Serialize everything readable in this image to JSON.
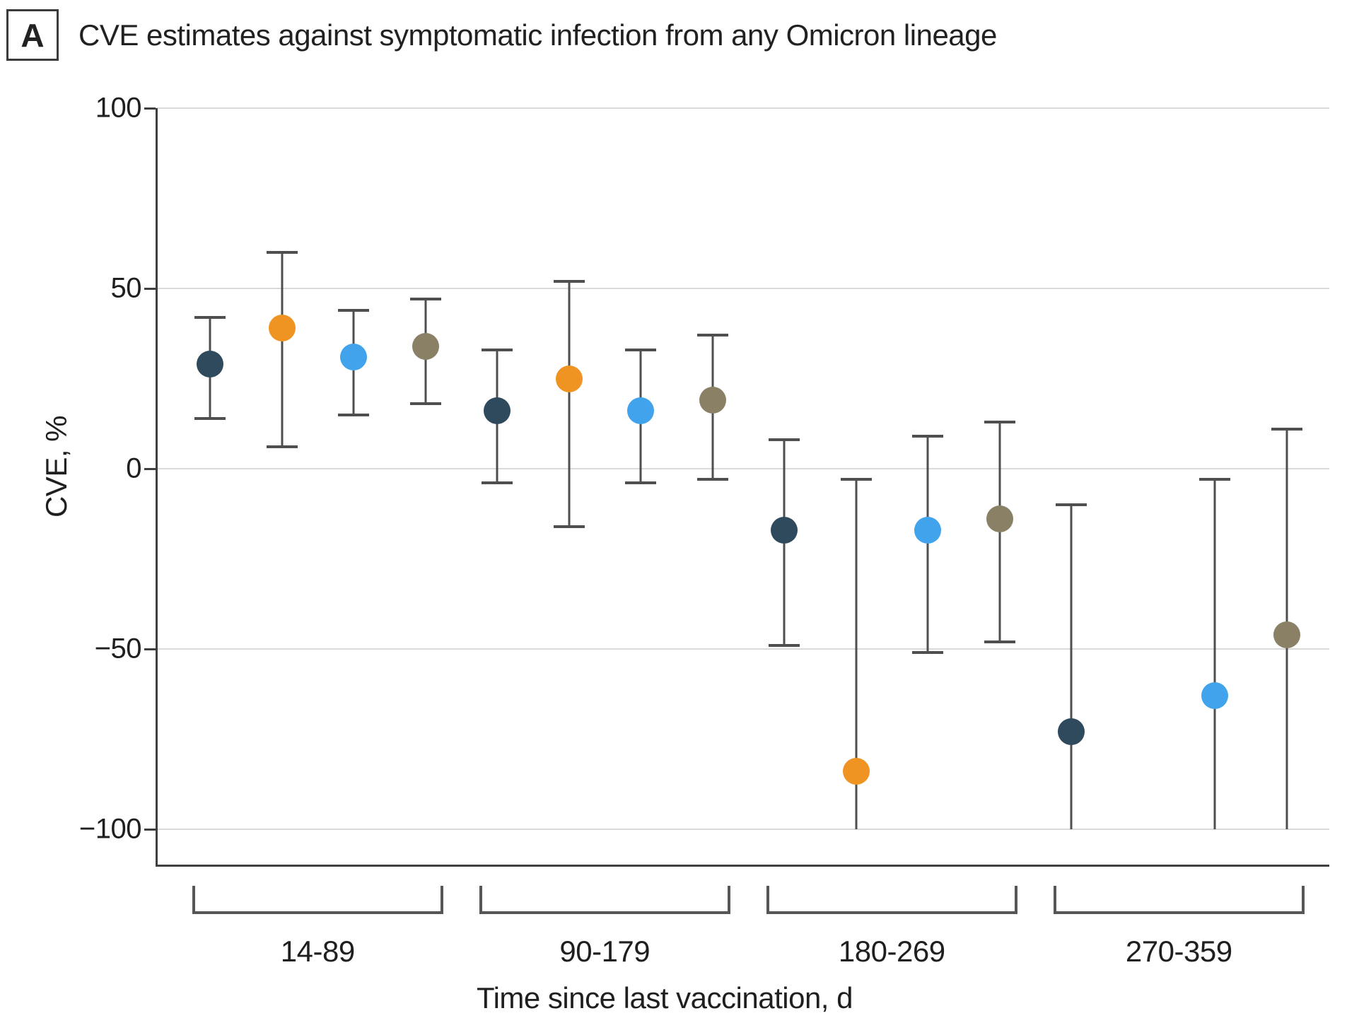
{
  "panel_label": "A",
  "title": "CVE estimates against symptomatic infection from any Omicron lineage",
  "chart_data": {
    "type": "scatter",
    "subtype": "point-estimates-with-95ci-error-bars",
    "title": "CVE estimates against symptomatic infection from any Omicron lineage",
    "xlabel": "Time since last vaccination, d",
    "ylabel": "CVE, %",
    "ylim": [
      -100,
      100
    ],
    "yticks": [
      100,
      50,
      0,
      -50,
      -100
    ],
    "ytick_labels": [
      "100",
      "50",
      "0",
      "−50",
      "−100"
    ],
    "grid": true,
    "legend_position": "none",
    "categories": [
      "14-89",
      "90-179",
      "180-269",
      "270-359"
    ],
    "note_truncation": "error bars reaching -100 are truncated at axis minimum without a bottom cap",
    "series": [
      {
        "name": "navy",
        "color": "#2e4a5c",
        "slot": 0,
        "points": [
          {
            "group": "14-89",
            "value": 29,
            "ci_low": 14,
            "ci_high": 42,
            "low_truncated": false
          },
          {
            "group": "90-179",
            "value": 16,
            "ci_low": -4,
            "ci_high": 33,
            "low_truncated": false
          },
          {
            "group": "180-269",
            "value": -17,
            "ci_low": -49,
            "ci_high": 8,
            "low_truncated": false
          },
          {
            "group": "270-359",
            "value": -73,
            "ci_low": -100,
            "ci_high": -10,
            "low_truncated": true
          }
        ]
      },
      {
        "name": "orange",
        "color": "#ef9322",
        "slot": 1,
        "points": [
          {
            "group": "14-89",
            "value": 39,
            "ci_low": 6,
            "ci_high": 60,
            "low_truncated": false
          },
          {
            "group": "90-179",
            "value": 25,
            "ci_low": -16,
            "ci_high": 52,
            "low_truncated": false
          },
          {
            "group": "180-269",
            "value": -84,
            "ci_low": -100,
            "ci_high": -3,
            "low_truncated": true
          }
        ]
      },
      {
        "name": "sky-blue",
        "color": "#41a3ec",
        "slot": 2,
        "points": [
          {
            "group": "14-89",
            "value": 31,
            "ci_low": 15,
            "ci_high": 44,
            "low_truncated": false
          },
          {
            "group": "90-179",
            "value": 16,
            "ci_low": -4,
            "ci_high": 33,
            "low_truncated": false
          },
          {
            "group": "180-269",
            "value": -17,
            "ci_low": -51,
            "ci_high": 9,
            "low_truncated": false
          },
          {
            "group": "270-359",
            "value": -63,
            "ci_low": -100,
            "ci_high": -3,
            "low_truncated": true
          }
        ]
      },
      {
        "name": "olive",
        "color": "#8a8066",
        "slot": 3,
        "points": [
          {
            "group": "14-89",
            "value": 34,
            "ci_low": 18,
            "ci_high": 47,
            "low_truncated": false
          },
          {
            "group": "90-179",
            "value": 19,
            "ci_low": -3,
            "ci_high": 37,
            "low_truncated": false
          },
          {
            "group": "180-269",
            "value": -14,
            "ci_low": -48,
            "ci_high": 13,
            "low_truncated": false
          },
          {
            "group": "270-359",
            "value": -46,
            "ci_low": -100,
            "ci_high": 11,
            "low_truncated": true
          }
        ]
      }
    ]
  }
}
